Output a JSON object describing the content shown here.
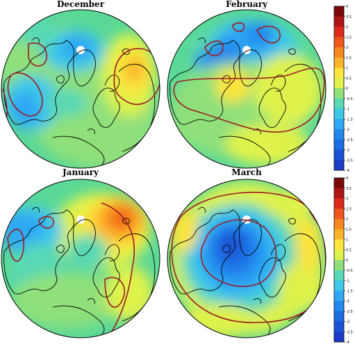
{
  "figure": {
    "panels": [
      {
        "id": "december",
        "title": "December",
        "pattern": "dec"
      },
      {
        "id": "february",
        "title": "February",
        "pattern": "feb"
      },
      {
        "id": "january",
        "title": "January",
        "pattern": "jan"
      },
      {
        "id": "march",
        "title": "March",
        "pattern": "mar"
      }
    ],
    "colorbars": [
      {
        "id": "top",
        "ticks": [
          "4",
          "3.5",
          "3",
          "2.5",
          "2",
          "1.5",
          "1",
          "0.5",
          "0",
          "-0.5",
          "-1",
          "-1.5",
          "-2",
          "-2.5",
          "-3",
          "-3.5",
          "-4"
        ]
      },
      {
        "id": "bottom",
        "ticks": [
          "4",
          "3.5",
          "3",
          "2.5",
          "2",
          "1.5",
          "1",
          "0.5",
          "0",
          "-0.5",
          "-1",
          "-1.5",
          "-2",
          "-2.5",
          "-3",
          "-3.5",
          "-4"
        ]
      }
    ],
    "palette": [
      "#7a0a0a",
      "#b01515",
      "#de2a1a",
      "#f0561e",
      "#f7861e",
      "#fab42a",
      "#fde43a",
      "#dff24c",
      "#8fe07a",
      "#58d8b4",
      "#3ec8e8",
      "#2ea8f4",
      "#2288ee",
      "#1c6ce2",
      "#1a52d6",
      "#1a3cc8"
    ],
    "colors": {
      "contour": "#9c1a22",
      "coast": "#000000",
      "land_base": "#5ad896"
    }
  }
}
